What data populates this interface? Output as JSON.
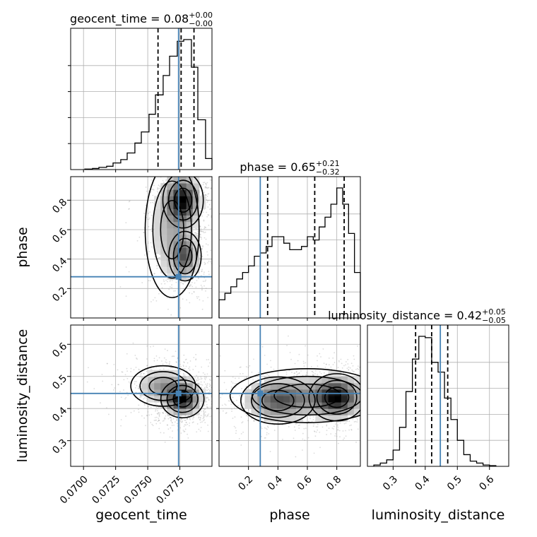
{
  "chart_data": {
    "type": "corner",
    "parameters": [
      "geocent_time",
      "phase",
      "luminosity_distance"
    ],
    "axes": {
      "geocent_time": {
        "range": [
          0.069,
          0.08
        ],
        "ticks": [
          0.07,
          0.0725,
          0.075,
          0.0775
        ],
        "tick_labels": [
          "0.0700",
          "0.0725",
          "0.0750",
          "0.0775"
        ],
        "truth": 0.0774
      },
      "phase": {
        "range": [
          0.0,
          0.96
        ],
        "ticks": [
          0.2,
          0.4,
          0.6,
          0.8
        ],
        "tick_labels": [
          "0.2",
          "0.4",
          "0.6",
          "0.8"
        ],
        "truth": 0.28
      },
      "luminosity_distance": {
        "range": [
          0.22,
          0.66
        ],
        "ticks": [
          0.3,
          0.4,
          0.5,
          0.6
        ],
        "tick_labels": [
          "0.3",
          "0.4",
          "0.5",
          "0.6"
        ],
        "truth": 0.447
      }
    },
    "marginals": [
      {
        "parameter": "geocent_time",
        "title_text": "geocent_time = 0.08",
        "title_plus": "+0.00",
        "title_minus": "−0.00",
        "quantile_lines": [
          0.0758,
          0.0776,
          0.0786
        ],
        "bin_edges": [
          0.0701,
          0.0707,
          0.0712,
          0.0718,
          0.0723,
          0.0729,
          0.0734,
          0.074,
          0.0745,
          0.0751,
          0.0756,
          0.0762,
          0.0767,
          0.0773,
          0.0778,
          0.0784,
          0.0789,
          0.0795,
          0.08
        ],
        "counts": [
          1,
          2,
          4,
          6,
          12,
          18,
          30,
          48,
          68,
          100,
          135,
          170,
          205,
          232,
          235,
          185,
          90,
          20
        ]
      },
      {
        "parameter": "phase",
        "title_text": "phase = 0.65",
        "title_plus": "+0.21",
        "title_minus": "−0.32",
        "quantile_lines": [
          0.33,
          0.65,
          0.85
        ],
        "bin_edges": [
          0.0,
          0.04,
          0.08,
          0.12,
          0.16,
          0.2,
          0.24,
          0.28,
          0.32,
          0.36,
          0.4,
          0.44,
          0.48,
          0.52,
          0.56,
          0.6,
          0.64,
          0.68,
          0.72,
          0.76,
          0.8,
          0.84,
          0.88,
          0.92,
          0.96
        ],
        "counts": [
          28,
          38,
          48,
          60,
          70,
          80,
          95,
          100,
          110,
          125,
          125,
          115,
          105,
          105,
          110,
          125,
          120,
          140,
          155,
          175,
          200,
          175,
          130,
          70
        ]
      },
      {
        "parameter": "luminosity_distance",
        "title_text": "luminosity_distance = 0.42",
        "title_plus": "+0.05",
        "title_minus": "−0.05",
        "quantile_lines": [
          0.37,
          0.42,
          0.47
        ],
        "bin_edges": [
          0.24,
          0.26,
          0.28,
          0.3,
          0.32,
          0.34,
          0.36,
          0.38,
          0.4,
          0.42,
          0.44,
          0.46,
          0.48,
          0.5,
          0.52,
          0.54,
          0.56,
          0.58,
          0.6,
          0.62
        ],
        "counts": [
          2,
          5,
          10,
          25,
          60,
          115,
          165,
          200,
          198,
          160,
          145,
          105,
          72,
          40,
          18,
          8,
          5,
          2,
          1
        ]
      }
    ],
    "joint": [
      {
        "x": "geocent_time",
        "y": "phase",
        "density_peaks": [
          {
            "x": 0.07775,
            "y": 0.8,
            "sx": 0.00075,
            "sy": 0.09,
            "w": 1.0
          },
          {
            "x": 0.0779,
            "y": 0.42,
            "sx": 0.0006,
            "sy": 0.08,
            "w": 0.65
          },
          {
            "x": 0.0769,
            "y": 0.6,
            "sx": 0.001,
            "sy": 0.22,
            "w": 0.35
          }
        ]
      },
      {
        "x": "geocent_time",
        "y": "luminosity_distance",
        "density_peaks": [
          {
            "x": 0.0777,
            "y": 0.43,
            "sx": 0.0008,
            "sy": 0.028,
            "w": 1.0
          },
          {
            "x": 0.0762,
            "y": 0.47,
            "sx": 0.0012,
            "sy": 0.03,
            "w": 0.45
          }
        ]
      },
      {
        "x": "phase",
        "y": "luminosity_distance",
        "density_peaks": [
          {
            "x": 0.8,
            "y": 0.435,
            "sx": 0.09,
            "sy": 0.035,
            "w": 1.0
          },
          {
            "x": 0.4,
            "y": 0.425,
            "sx": 0.12,
            "sy": 0.035,
            "w": 0.6
          },
          {
            "x": 0.6,
            "y": 0.44,
            "sx": 0.25,
            "sy": 0.04,
            "w": 0.4
          }
        ]
      }
    ],
    "colors": {
      "truth": "#4682b4",
      "hist": "#000000",
      "quantile": "#000000",
      "grid": "#b0b0b0",
      "points": "#9a9a9a"
    }
  }
}
